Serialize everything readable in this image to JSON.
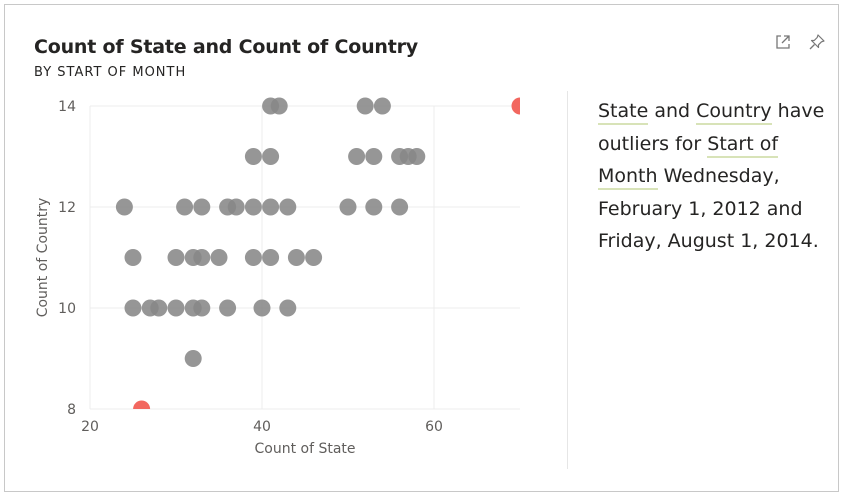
{
  "header": {
    "title": "Count of State and Count of Country",
    "subtitle": "BY START OF MONTH"
  },
  "toolbar": {
    "focus_icon": "expand-icon",
    "pin_icon": "pin-icon"
  },
  "narrative": {
    "part1": "State",
    "part2": " and ",
    "part3": "Country",
    "part4": " have outliers for ",
    "part5": "Start of Month",
    "part6": " Wednesday, February 1, 2012 and Friday, August 1, 2014."
  },
  "colors": {
    "point": "#888888",
    "outlier": "#f2675f",
    "highlight_underline": "#d8e3b8"
  },
  "chart_data": {
    "type": "scatter",
    "title": "Count of State and Count of Country",
    "subtitle": "BY START OF MONTH",
    "xlabel": "Count of State",
    "ylabel": "Count of Country",
    "xlim": [
      20,
      70
    ],
    "ylim": [
      8,
      14
    ],
    "xticks": [
      20,
      40,
      60
    ],
    "yticks": [
      8,
      10,
      12,
      14
    ],
    "grid": true,
    "points": [
      {
        "x": 41,
        "y": 14
      },
      {
        "x": 42,
        "y": 14
      },
      {
        "x": 52,
        "y": 14
      },
      {
        "x": 54,
        "y": 14
      },
      {
        "x": 39,
        "y": 13
      },
      {
        "x": 41,
        "y": 13
      },
      {
        "x": 51,
        "y": 13
      },
      {
        "x": 53,
        "y": 13
      },
      {
        "x": 56,
        "y": 13
      },
      {
        "x": 57,
        "y": 13
      },
      {
        "x": 58,
        "y": 13
      },
      {
        "x": 24,
        "y": 12
      },
      {
        "x": 31,
        "y": 12
      },
      {
        "x": 33,
        "y": 12
      },
      {
        "x": 36,
        "y": 12
      },
      {
        "x": 37,
        "y": 12
      },
      {
        "x": 39,
        "y": 12
      },
      {
        "x": 41,
        "y": 12
      },
      {
        "x": 43,
        "y": 12
      },
      {
        "x": 50,
        "y": 12
      },
      {
        "x": 53,
        "y": 12
      },
      {
        "x": 56,
        "y": 12
      },
      {
        "x": 25,
        "y": 11
      },
      {
        "x": 30,
        "y": 11
      },
      {
        "x": 32,
        "y": 11
      },
      {
        "x": 33,
        "y": 11
      },
      {
        "x": 35,
        "y": 11
      },
      {
        "x": 39,
        "y": 11
      },
      {
        "x": 41,
        "y": 11
      },
      {
        "x": 44,
        "y": 11
      },
      {
        "x": 46,
        "y": 11
      },
      {
        "x": 25,
        "y": 10
      },
      {
        "x": 27,
        "y": 10
      },
      {
        "x": 28,
        "y": 10
      },
      {
        "x": 30,
        "y": 10
      },
      {
        "x": 32,
        "y": 10
      },
      {
        "x": 33,
        "y": 10
      },
      {
        "x": 36,
        "y": 10
      },
      {
        "x": 40,
        "y": 10
      },
      {
        "x": 43,
        "y": 10
      },
      {
        "x": 32,
        "y": 9
      }
    ],
    "outliers": [
      {
        "x": 26,
        "y": 8
      },
      {
        "x": 70,
        "y": 14
      }
    ]
  }
}
